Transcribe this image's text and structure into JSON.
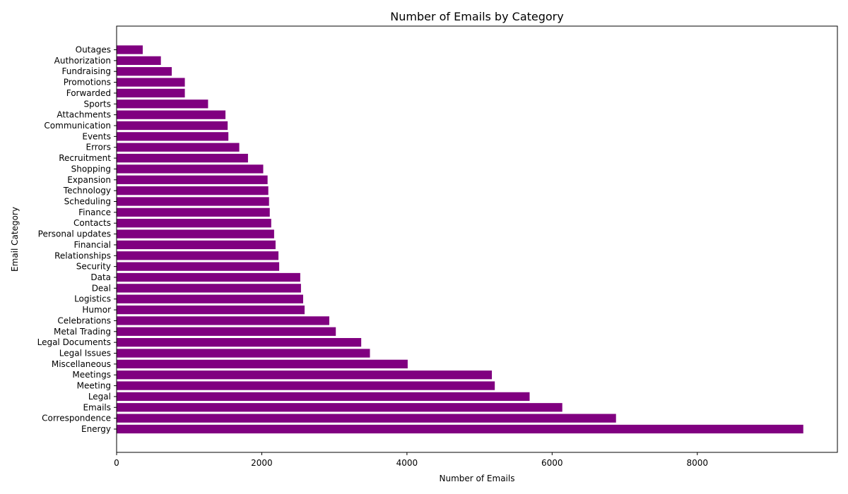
{
  "chart_data": {
    "type": "bar",
    "orientation": "horizontal",
    "title": "Number of Emails by Category",
    "xlabel": "Number of Emails",
    "ylabel": "Email Category",
    "xlim": [
      0,
      9930
    ],
    "xticks": [
      0,
      2000,
      4000,
      6000,
      8000
    ],
    "xtick_labels": [
      "0",
      "2000",
      "4000",
      "6000",
      "8000"
    ],
    "grid": false,
    "legend": "none",
    "bar_color": "#800080",
    "categories": [
      "Energy",
      "Correspondence",
      "Emails",
      "Legal",
      "Meeting",
      "Meetings",
      "Miscellaneous",
      "Legal Issues",
      "Legal Documents",
      "Metal Trading",
      "Celebrations",
      "Humor",
      "Logistics",
      "Deal",
      "Data",
      "Security",
      "Relationships",
      "Financial",
      "Personal updates",
      "Contacts",
      "Finance",
      "Scheduling",
      "Technology",
      "Expansion",
      "Shopping",
      "Recruitment",
      "Errors",
      "Events",
      "Communication",
      "Attachments",
      "Sports",
      "Forwarded",
      "Promotions",
      "Fundraising",
      "Authorization",
      "Outages"
    ],
    "values": [
      9460,
      6880,
      6140,
      5690,
      5210,
      5170,
      4010,
      3490,
      3370,
      3020,
      2930,
      2590,
      2570,
      2540,
      2530,
      2240,
      2230,
      2190,
      2170,
      2130,
      2110,
      2100,
      2090,
      2080,
      2020,
      1810,
      1690,
      1540,
      1530,
      1500,
      1260,
      940,
      940,
      760,
      610,
      360
    ]
  }
}
